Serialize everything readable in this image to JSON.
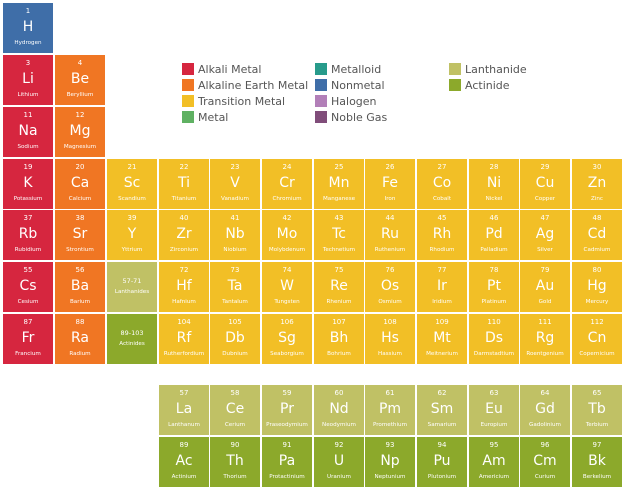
{
  "colors": {
    "alkali": "#d6263f",
    "alkaline": "#f07623",
    "transition": "#f2bf26",
    "metal": "#5fb162",
    "metalloid": "#279b8b",
    "nonmetal": "#3f6ea8",
    "halogen": "#b27fb8",
    "noble": "#804d7a",
    "lanthanide": "#c0c165",
    "actinide": "#8ca92b"
  },
  "legend": [
    {
      "label": "Alkali Metal",
      "color": "#d6263f"
    },
    {
      "label": "Alkaline Earth Metal",
      "color": "#f07623"
    },
    {
      "label": "Transition Metal",
      "color": "#f2bf26"
    },
    {
      "label": "Metal",
      "color": "#5fb162"
    },
    {
      "label": "Metalloid",
      "color": "#279b8b"
    },
    {
      "label": "Nonmetal",
      "color": "#3f6ea8"
    },
    {
      "label": "Halogen",
      "color": "#b27fb8"
    },
    {
      "label": "Noble Gas",
      "color": "#804d7a"
    },
    {
      "label": "Lanthanide",
      "color": "#c0c165"
    },
    {
      "label": "Actinide",
      "color": "#8ca92b"
    }
  ],
  "elements": [
    {
      "num": "1",
      "sym": "H",
      "name": "Hydrogen",
      "cat": "nonmetal"
    },
    {
      "num": "3",
      "sym": "Li",
      "name": "Lithium",
      "cat": "alkali"
    },
    {
      "num": "4",
      "sym": "Be",
      "name": "Beryllium",
      "cat": "alkaline"
    },
    {
      "num": "11",
      "sym": "Na",
      "name": "Sodium",
      "cat": "alkali"
    },
    {
      "num": "12",
      "sym": "Mg",
      "name": "Magnesium",
      "cat": "alkaline"
    },
    {
      "num": "19",
      "sym": "K",
      "name": "Potassium",
      "cat": "alkali"
    },
    {
      "num": "20",
      "sym": "Ca",
      "name": "Calcium",
      "cat": "alkaline"
    },
    {
      "num": "21",
      "sym": "Sc",
      "name": "Scandium",
      "cat": "transition"
    },
    {
      "num": "22",
      "sym": "Ti",
      "name": "Titanium",
      "cat": "transition"
    },
    {
      "num": "23",
      "sym": "V",
      "name": "Vanadium",
      "cat": "transition"
    },
    {
      "num": "24",
      "sym": "Cr",
      "name": "Chromium",
      "cat": "transition"
    },
    {
      "num": "25",
      "sym": "Mn",
      "name": "Manganese",
      "cat": "transition"
    },
    {
      "num": "26",
      "sym": "Fe",
      "name": "Iron",
      "cat": "transition"
    },
    {
      "num": "27",
      "sym": "Co",
      "name": "Cobalt",
      "cat": "transition"
    },
    {
      "num": "28",
      "sym": "Ni",
      "name": "Nickel",
      "cat": "transition"
    },
    {
      "num": "29",
      "sym": "Cu",
      "name": "Copper",
      "cat": "transition"
    },
    {
      "num": "30",
      "sym": "Zn",
      "name": "Zinc",
      "cat": "transition"
    },
    {
      "num": "37",
      "sym": "Rb",
      "name": "Rubidium",
      "cat": "alkali"
    },
    {
      "num": "38",
      "sym": "Sr",
      "name": "Strontium",
      "cat": "alkaline"
    },
    {
      "num": "39",
      "sym": "Y",
      "name": "Yttrium",
      "cat": "transition"
    },
    {
      "num": "40",
      "sym": "Zr",
      "name": "Zirconium",
      "cat": "transition"
    },
    {
      "num": "41",
      "sym": "Nb",
      "name": "Niobium",
      "cat": "transition"
    },
    {
      "num": "42",
      "sym": "Mo",
      "name": "Molybdenum",
      "cat": "transition"
    },
    {
      "num": "43",
      "sym": "Tc",
      "name": "Technetium",
      "cat": "transition"
    },
    {
      "num": "44",
      "sym": "Ru",
      "name": "Ruthenium",
      "cat": "transition"
    },
    {
      "num": "45",
      "sym": "Rh",
      "name": "Rhodium",
      "cat": "transition"
    },
    {
      "num": "46",
      "sym": "Pd",
      "name": "Palladium",
      "cat": "transition"
    },
    {
      "num": "47",
      "sym": "Ag",
      "name": "Silver",
      "cat": "transition"
    },
    {
      "num": "48",
      "sym": "Cd",
      "name": "Cadmium",
      "cat": "transition"
    },
    {
      "num": "55",
      "sym": "Cs",
      "name": "Cesium",
      "cat": "alkali"
    },
    {
      "num": "56",
      "sym": "Ba",
      "name": "Barium",
      "cat": "alkaline"
    },
    {
      "num": "57-71",
      "sym": "",
      "name": "Lanthanides",
      "cat": "lanthanide",
      "ph": true
    },
    {
      "num": "72",
      "sym": "Hf",
      "name": "Hafnium",
      "cat": "transition"
    },
    {
      "num": "73",
      "sym": "Ta",
      "name": "Tantalum",
      "cat": "transition"
    },
    {
      "num": "74",
      "sym": "W",
      "name": "Tungsten",
      "cat": "transition"
    },
    {
      "num": "75",
      "sym": "Re",
      "name": "Rhenium",
      "cat": "transition"
    },
    {
      "num": "76",
      "sym": "Os",
      "name": "Osmium",
      "cat": "transition"
    },
    {
      "num": "77",
      "sym": "Ir",
      "name": "Iridium",
      "cat": "transition"
    },
    {
      "num": "78",
      "sym": "Pt",
      "name": "Platinum",
      "cat": "transition"
    },
    {
      "num": "79",
      "sym": "Au",
      "name": "Gold",
      "cat": "transition"
    },
    {
      "num": "80",
      "sym": "Hg",
      "name": "Mercury",
      "cat": "transition"
    },
    {
      "num": "87",
      "sym": "Fr",
      "name": "Francium",
      "cat": "alkali"
    },
    {
      "num": "88",
      "sym": "Ra",
      "name": "Radium",
      "cat": "alkaline"
    },
    {
      "num": "89-103",
      "sym": "",
      "name": "Actinides",
      "cat": "actinide",
      "ph": true
    },
    {
      "num": "104",
      "sym": "Rf",
      "name": "Rutherfordium",
      "cat": "transition"
    },
    {
      "num": "105",
      "sym": "Db",
      "name": "Dubnium",
      "cat": "transition"
    },
    {
      "num": "106",
      "sym": "Sg",
      "name": "Seaborgium",
      "cat": "transition"
    },
    {
      "num": "107",
      "sym": "Bh",
      "name": "Bohrium",
      "cat": "transition"
    },
    {
      "num": "108",
      "sym": "Hs",
      "name": "Hassium",
      "cat": "transition"
    },
    {
      "num": "109",
      "sym": "Mt",
      "name": "Meitnerium",
      "cat": "transition"
    },
    {
      "num": "110",
      "sym": "Ds",
      "name": "Darmstadtium",
      "cat": "transition"
    },
    {
      "num": "111",
      "sym": "Rg",
      "name": "Roentgenium",
      "cat": "transition"
    },
    {
      "num": "112",
      "sym": "Cn",
      "name": "Copernicium",
      "cat": "transition"
    },
    {
      "num": "57",
      "sym": "La",
      "name": "Lanthanum",
      "cat": "lanthanide"
    },
    {
      "num": "58",
      "sym": "Ce",
      "name": "Cerium",
      "cat": "lanthanide"
    },
    {
      "num": "59",
      "sym": "Pr",
      "name": "Praseodymium",
      "cat": "lanthanide"
    },
    {
      "num": "60",
      "sym": "Nd",
      "name": "Neodymium",
      "cat": "lanthanide"
    },
    {
      "num": "61",
      "sym": "Pm",
      "name": "Promethium",
      "cat": "lanthanide"
    },
    {
      "num": "62",
      "sym": "Sm",
      "name": "Samarium",
      "cat": "lanthanide"
    },
    {
      "num": "63",
      "sym": "Eu",
      "name": "Europium",
      "cat": "lanthanide"
    },
    {
      "num": "64",
      "sym": "Gd",
      "name": "Gadolinium",
      "cat": "lanthanide"
    },
    {
      "num": "65",
      "sym": "Tb",
      "name": "Terbium",
      "cat": "lanthanide"
    },
    {
      "num": "89",
      "sym": "Ac",
      "name": "Actinium",
      "cat": "actinide"
    },
    {
      "num": "90",
      "sym": "Th",
      "name": "Thorium",
      "cat": "actinide"
    },
    {
      "num": "91",
      "sym": "Pa",
      "name": "Protactinium",
      "cat": "actinide"
    },
    {
      "num": "92",
      "sym": "U",
      "name": "Uranium",
      "cat": "actinide"
    },
    {
      "num": "93",
      "sym": "Np",
      "name": "Neptunium",
      "cat": "actinide"
    },
    {
      "num": "94",
      "sym": "Pu",
      "name": "Plutonium",
      "cat": "actinide"
    },
    {
      "num": "95",
      "sym": "Am",
      "name": "Americium",
      "cat": "actinide"
    },
    {
      "num": "96",
      "sym": "Cm",
      "name": "Curium",
      "cat": "actinide"
    },
    {
      "num": "97",
      "sym": "Bk",
      "name": "Berkelium",
      "cat": "actinide"
    }
  ]
}
